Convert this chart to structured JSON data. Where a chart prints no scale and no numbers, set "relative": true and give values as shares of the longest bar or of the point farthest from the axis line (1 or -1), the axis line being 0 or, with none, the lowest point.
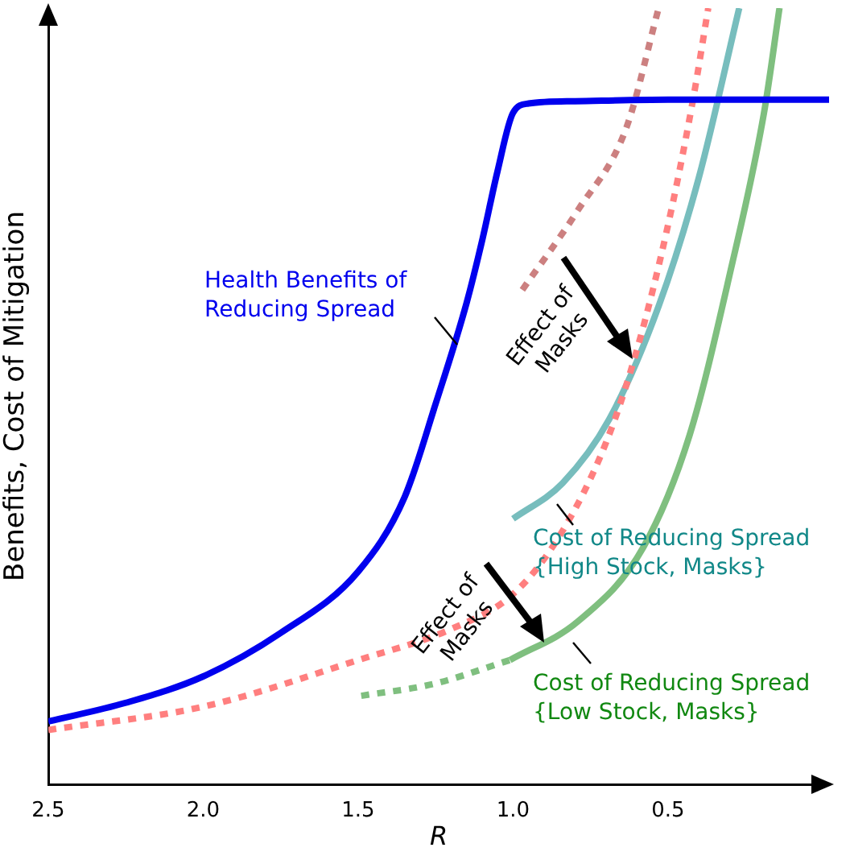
{
  "chart_data": {
    "type": "line",
    "relative": true,
    "xlabel": "R",
    "ylabel": "Benefits, Cost of Mitigation",
    "xlim": [
      2.5,
      -0.02
    ],
    "xticks": [
      {
        "value": 2.5,
        "label": "2.5"
      },
      {
        "value": 2.0,
        "label": "2.0"
      },
      {
        "value": 1.5,
        "label": "1.5"
      },
      {
        "value": 1.0,
        "label": "1.0"
      },
      {
        "value": 0.5,
        "label": "0.5"
      }
    ],
    "grid": false,
    "legend": false,
    "marker": "none",
    "series": [
      {
        "name": "Health Benefits of\nReducing Spread",
        "color": "#0000ee",
        "line_style": "solid",
        "x": [
          2.5,
          2.25,
          2.0,
          1.75,
          1.5,
          1.35,
          1.25,
          1.15,
          1.1,
          1.05,
          1.0,
          0.95,
          0.8,
          0.5,
          0.2,
          -0.02
        ],
        "values": [
          0.081,
          0.105,
          0.139,
          0.195,
          0.274,
          0.37,
          0.49,
          0.62,
          0.7,
          0.79,
          0.865,
          0.877,
          0.88,
          0.882,
          0.882,
          0.882
        ]
      },
      {
        "color": "#ff7f7f",
        "line_style": "dotted",
        "x": [
          2.5,
          2.0,
          1.5,
          1.2,
          1.0,
          0.85,
          0.7,
          0.6,
          0.5,
          0.42,
          0.37
        ],
        "values": [
          0.07,
          0.1,
          0.16,
          0.2,
          0.245,
          0.32,
          0.44,
          0.56,
          0.72,
          0.88,
          1
        ]
      },
      {
        "color": "#cc8080",
        "line_style": "dotted",
        "x": [
          0.97,
          0.79,
          0.635,
          0.53
        ],
        "values": [
          0.637,
          0.74,
          0.845,
          1
        ]
      },
      {
        "name": "Cost of Reducing Spread\n{High Stock, Masks}",
        "color": "#77bdbd",
        "line_style": "solid",
        "x": [
          1.0,
          0.84,
          0.69,
          0.53,
          0.4,
          0.27
        ],
        "values": [
          0.342,
          0.388,
          0.47,
          0.616,
          0.782,
          1
        ]
      },
      {
        "color": "#7fbf7f",
        "line_style": "dotted",
        "x": [
          1.49,
          1.26,
          1.01
        ],
        "values": [
          0.114,
          0.129,
          0.16
        ]
      },
      {
        "name": "Cost of Reducing Spread\n{Low Stock, Masks}",
        "color": "#7fbf7f",
        "line_style": "solid",
        "x": [
          1.01,
          0.79,
          0.58,
          0.43,
          0.3,
          0.19,
          0.14
        ],
        "values": [
          0.16,
          0.21,
          0.305,
          0.45,
          0.658,
          0.865,
          1
        ]
      }
    ],
    "annotations": [
      "Effect of\nMasks",
      "Effect of\nMasks"
    ]
  }
}
